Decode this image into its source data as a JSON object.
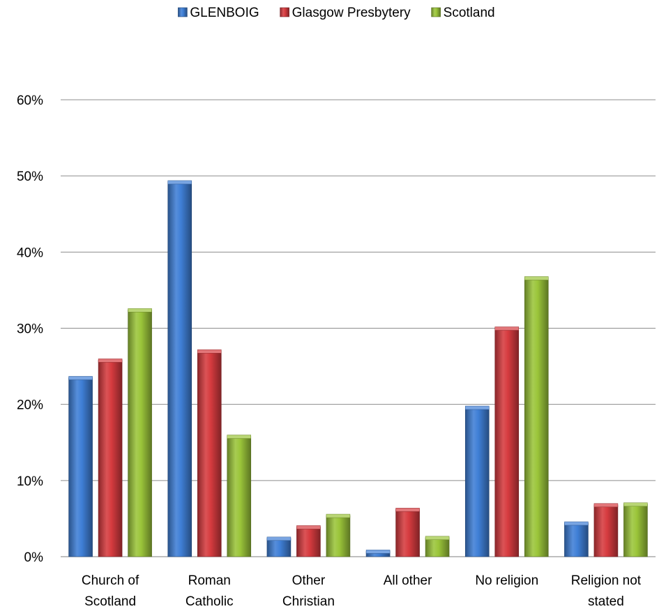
{
  "chart_data": {
    "type": "bar",
    "categories": [
      [
        "Church of",
        "Scotland"
      ],
      [
        "Roman",
        "Catholic"
      ],
      [
        "Other",
        "Christian"
      ],
      [
        "All other"
      ],
      [
        "No religion"
      ],
      [
        "Religion not",
        "stated"
      ]
    ],
    "series": [
      {
        "name": "GLENBOIG",
        "color": "#3f7fd6",
        "values": [
          23.5,
          49.2,
          2.4,
          0.7,
          19.6,
          4.4
        ]
      },
      {
        "name": "Glasgow Presbytery",
        "color": "#d63b3f",
        "values": [
          25.8,
          27.0,
          3.9,
          6.2,
          30.0,
          6.8
        ]
      },
      {
        "name": "Scotland",
        "color": "#9bc53a",
        "values": [
          32.4,
          15.8,
          5.4,
          2.5,
          36.6,
          6.9
        ]
      }
    ],
    "y_ticks": [
      "0%",
      "10%",
      "20%",
      "30%",
      "40%",
      "50%",
      "60%"
    ],
    "ylim": [
      0,
      60
    ],
    "grid": true,
    "legend_position": "top-center",
    "title": "",
    "xlabel": "",
    "ylabel": ""
  }
}
